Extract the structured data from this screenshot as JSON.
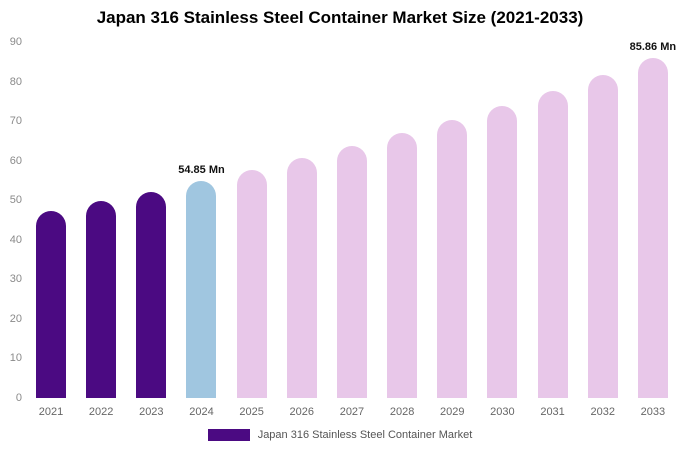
{
  "chart_data": {
    "type": "bar",
    "title": "Japan 316 Stainless Steel Container Market Size (2021-2033)",
    "xlabel": "",
    "ylabel": "",
    "ylim": [
      0,
      90
    ],
    "yticks": [
      0,
      10,
      20,
      30,
      40,
      50,
      60,
      70,
      80,
      90
    ],
    "grid": false,
    "legend_position": "bottom",
    "categories": [
      "2021",
      "2022",
      "2023",
      "2024",
      "2025",
      "2026",
      "2027",
      "2028",
      "2029",
      "2030",
      "2031",
      "2032",
      "2033"
    ],
    "values": [
      47.3,
      49.7,
      52.2,
      54.85,
      57.6,
      60.6,
      63.7,
      66.9,
      70.3,
      73.9,
      77.7,
      81.7,
      85.86
    ],
    "bar_colors": [
      "#4B0A82",
      "#4B0A82",
      "#4B0A82",
      "#A0C6E0",
      "#E8C7E9",
      "#E8C7E9",
      "#E8C7E9",
      "#E8C7E9",
      "#E8C7E9",
      "#E8C7E9",
      "#E8C7E9",
      "#E8C7E9",
      "#E8C7E9"
    ],
    "annotations": [
      {
        "index": 3,
        "text": "54.85 Mn"
      },
      {
        "index": 12,
        "text": "85.86 Mn"
      }
    ]
  },
  "legend": {
    "label": "Japan 316 Stainless Steel Container Market",
    "swatch_color": "#4B0A82"
  },
  "colors": {
    "highlight_blue": "#A0C6E0",
    "forecast_pink": "#E8C7E9",
    "historic_purple": "#4B0A82",
    "axis_text": "#8a8a8a"
  }
}
